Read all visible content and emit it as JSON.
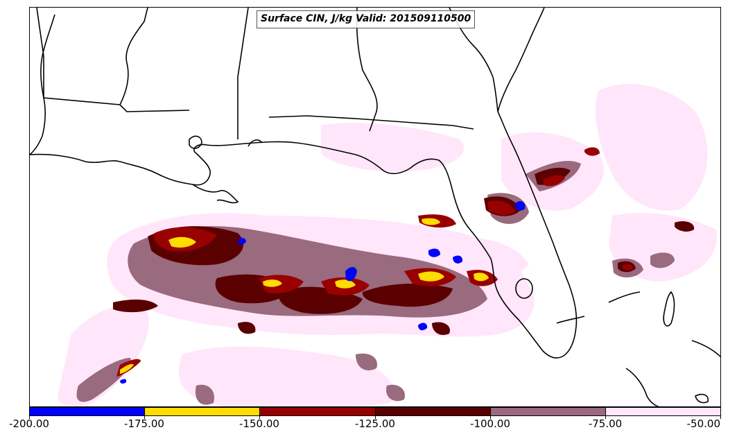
{
  "map": {
    "title": "Surface CIN, J/kg Valid: 201509110500",
    "field": "Surface CIN",
    "units": "J/kg",
    "valid_time": "201509110500",
    "region": "US Gulf Coast and Florida",
    "basemap_lines": [
      "coastlines",
      "state borders"
    ]
  },
  "colorbar": {
    "tick_labels": [
      "-200.00",
      "-175.00",
      "-150.00",
      "-125.00",
      "-100.00",
      "-75.00",
      "-50.00"
    ],
    "bins": [
      {
        "range": [
          -200,
          -175
        ],
        "color": "#0000ff"
      },
      {
        "range": [
          -175,
          -150
        ],
        "color": "#ffdd00"
      },
      {
        "range": [
          -150,
          -125
        ],
        "color": "#990000"
      },
      {
        "range": [
          -125,
          -100
        ],
        "color": "#5a0000"
      },
      {
        "range": [
          -100,
          -75
        ],
        "color": "#9a6a7e"
      },
      {
        "range": [
          -75,
          -50
        ],
        "color": "#ffe6fa"
      }
    ]
  }
}
